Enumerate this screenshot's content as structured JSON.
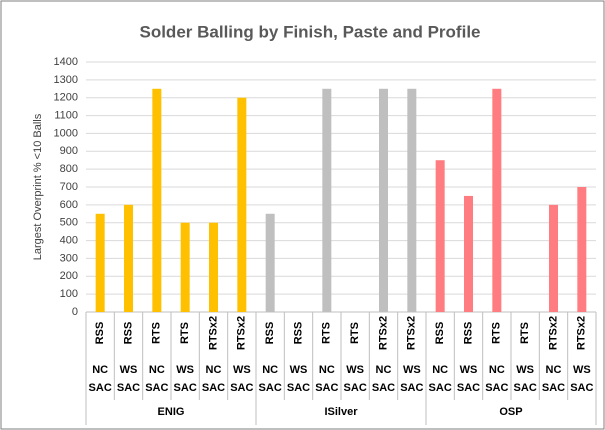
{
  "chart_data": {
    "type": "bar",
    "title": "Solder Balling by Finish, Paste and Profile",
    "y_label": "Largest Overprint % <10 Balls",
    "ylim": [
      0,
      1400
    ],
    "yticks": [
      0,
      100,
      200,
      300,
      400,
      500,
      600,
      700,
      800,
      900,
      1000,
      1100,
      1200,
      1300,
      1400
    ],
    "grid": true,
    "groups": [
      {
        "name": "ENIG",
        "color": "#FFC000",
        "profiles": [
          "RSS",
          "RSS",
          "RTS",
          "RTS",
          "RTSx2",
          "RTSx2"
        ],
        "pastes": [
          [
            "NC",
            "SAC"
          ],
          [
            "WS",
            "SAC"
          ],
          [
            "NC",
            "SAC"
          ],
          [
            "WS",
            "SAC"
          ],
          [
            "NC",
            "SAC"
          ],
          [
            "WS",
            "SAC"
          ]
        ],
        "values": [
          550,
          600,
          1250,
          500,
          500,
          1200
        ]
      },
      {
        "name": "ISilver",
        "color": "#BFBFBF",
        "profiles": [
          "RSS",
          "RSS",
          "RTS",
          "RTS",
          "RTSx2",
          "RTSx2"
        ],
        "pastes": [
          [
            "NC",
            "SAC"
          ],
          [
            "WS",
            "SAC"
          ],
          [
            "NC",
            "SAC"
          ],
          [
            "WS",
            "SAC"
          ],
          [
            "NC",
            "SAC"
          ],
          [
            "WS",
            "SAC"
          ]
        ],
        "values": [
          550,
          null,
          1250,
          null,
          1250,
          1250
        ]
      },
      {
        "name": "OSP",
        "color": "#FF7C80",
        "profiles": [
          "RSS",
          "RSS",
          "RTS",
          "RTS",
          "RTSx2",
          "RTSx2"
        ],
        "pastes": [
          [
            "NC",
            "SAC"
          ],
          [
            "WS",
            "SAC"
          ],
          [
            "NC",
            "SAC"
          ],
          [
            "WS",
            "SAC"
          ],
          [
            "NC",
            "SAC"
          ],
          [
            "WS",
            "SAC"
          ]
        ],
        "values": [
          850,
          650,
          1250,
          null,
          600,
          700
        ]
      }
    ]
  }
}
